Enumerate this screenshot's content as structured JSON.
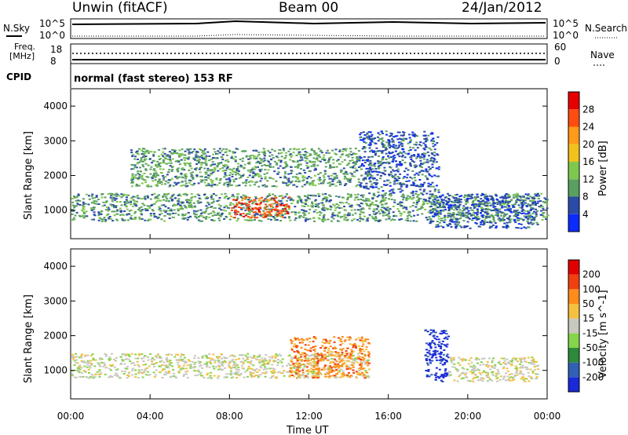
{
  "header": {
    "station": "Unwin (fitACF)",
    "beam": "Beam 00",
    "date": "24/Jan/2012"
  },
  "status": {
    "nsky_label": "N.Sky",
    "nsky_ticks": [
      "10^5",
      "10^0"
    ],
    "nsearch_label": "N.Search",
    "freq_label_1": "Freq.",
    "freq_label_2": "[MHz]",
    "freq_ticks": [
      "18",
      "8"
    ],
    "nave_label": "Nave",
    "nave_ticks": [
      "60",
      "0"
    ],
    "cpid_label": "CPID",
    "cpid_text": "normal (fast stereo) 153 RF"
  },
  "chart_data": [
    {
      "type": "heatmap",
      "name": "power",
      "ylabel": "Slant Range [km]",
      "ylim": [
        180,
        4500
      ],
      "yticks": [
        "1000",
        "2000",
        "3000",
        "4000"
      ],
      "xlim": [
        0,
        24
      ],
      "colorbar": {
        "label": "Power [dB]",
        "ticks": [
          "4",
          "8",
          "12",
          "16",
          "20",
          "24",
          "28"
        ],
        "colors": [
          "#0b2bff",
          "#2b4ba8",
          "#5aa060",
          "#7ec850",
          "#f1c21b",
          "#ff9a1a",
          "#ff4d12",
          "#e60000"
        ]
      },
      "scatter_regions": [
        {
          "x": [
            0.0,
            24.0
          ],
          "y": [
            700,
            1500
          ],
          "level": 2
        },
        {
          "x": [
            3.0,
            14.5
          ],
          "y": [
            1700,
            2800
          ],
          "level": 2
        },
        {
          "x": [
            8.0,
            11.0
          ],
          "y": [
            800,
            1400
          ],
          "level": 6
        },
        {
          "x": [
            14.5,
            18.5
          ],
          "y": [
            1500,
            3300
          ],
          "level": 1
        },
        {
          "x": [
            18.0,
            23.5
          ],
          "y": [
            500,
            1500
          ],
          "level": 1
        }
      ]
    },
    {
      "type": "heatmap",
      "name": "velocity",
      "ylabel": "Slant Range [km]",
      "ylim": [
        180,
        4500
      ],
      "yticks": [
        "1000",
        "2000",
        "3000",
        "4000"
      ],
      "xlim": [
        0,
        24
      ],
      "xticks": [
        "00:00",
        "04:00",
        "08:00",
        "12:00",
        "16:00",
        "20:00",
        "00:00"
      ],
      "xlabel": "Time UT",
      "colorbar": {
        "label": "Velocity [m s^-1]",
        "ticks": [
          "200",
          "100",
          "50",
          "15",
          "-15",
          "-50",
          "-100",
          "-200"
        ],
        "colors": [
          "#1a2ad8",
          "#3160b4",
          "#2c8a3a",
          "#86d44a",
          "#c8c8be",
          "#f5c040",
          "#ff8c1a",
          "#f04010",
          "#e00000"
        ]
      },
      "scatter_regions": [
        {
          "x": [
            0.0,
            15.0
          ],
          "y": [
            800,
            1500
          ],
          "level": 4
        },
        {
          "x": [
            11.0,
            15.0
          ],
          "y": [
            800,
            2000
          ],
          "level": 6
        },
        {
          "x": [
            17.8,
            19.0
          ],
          "y": [
            700,
            2200
          ],
          "level": 0
        },
        {
          "x": [
            19.0,
            23.5
          ],
          "y": [
            700,
            1400
          ],
          "level": 4
        }
      ]
    }
  ]
}
